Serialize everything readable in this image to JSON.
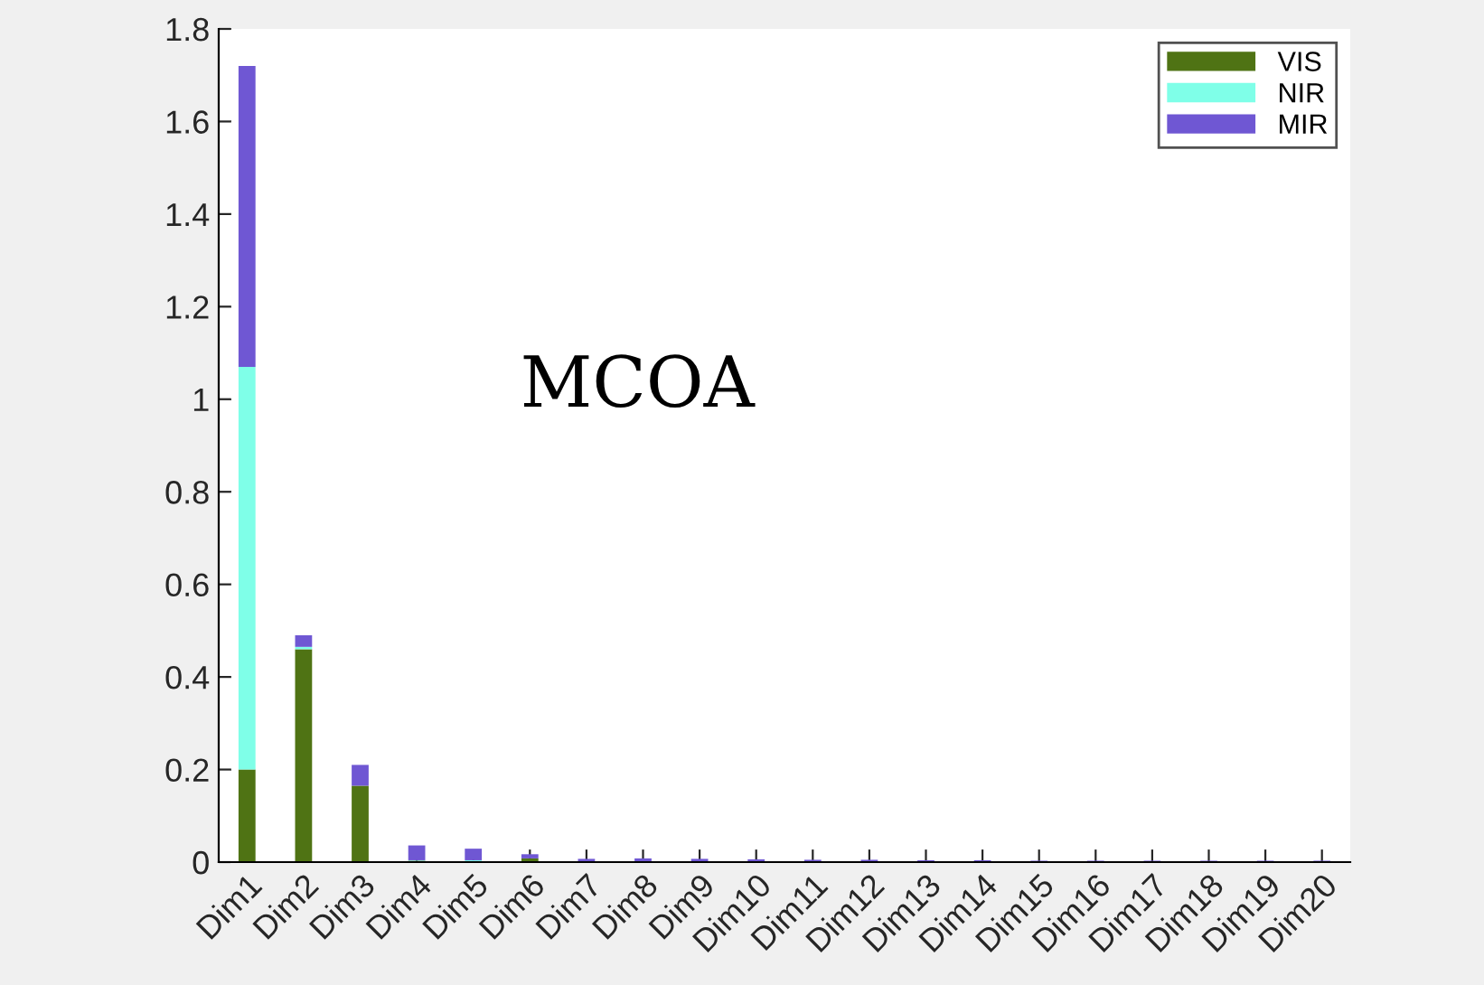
{
  "chart_data": {
    "type": "bar",
    "stacked": true,
    "categories": [
      "Dim1",
      "Dim2",
      "Dim3",
      "Dim4",
      "Dim5",
      "Dim6",
      "Dim7",
      "Dim8",
      "Dim9",
      "Dim10",
      "Dim11",
      "Dim12",
      "Dim13",
      "Dim14",
      "Dim15",
      "Dim16",
      "Dim17",
      "Dim18",
      "Dim19",
      "Dim20"
    ],
    "series": [
      {
        "name": "VIS",
        "color": "#4f7314",
        "values": [
          0.2,
          0.46,
          0.165,
          0.003,
          0.002,
          0.008,
          null,
          0.001,
          0.001,
          0.001,
          0.001,
          0.001,
          0.001,
          0.001,
          0.001,
          0.001,
          0.001,
          0.001,
          0.001,
          0.001
        ]
      },
      {
        "name": "NIR",
        "color": "#7fffe8",
        "values": [
          0.87,
          0.005,
          0.0,
          0.001,
          0.002,
          null,
          null,
          0.001,
          0.001,
          0.001,
          0.001,
          0.001,
          0.001,
          0.001,
          0.0,
          0.0,
          0.0,
          0.0,
          0.0,
          0.0
        ]
      },
      {
        "name": "MIR",
        "color": "#6f57d3",
        "values": [
          0.65,
          0.025,
          0.045,
          0.032,
          0.025,
          0.009,
          0.007,
          0.006,
          0.005,
          0.004,
          0.003,
          0.003,
          0.002,
          0.002,
          0.002,
          0.002,
          0.002,
          0.002,
          0.002,
          0.002
        ]
      }
    ],
    "ylim": [
      0,
      1.8
    ],
    "yticks": [
      0,
      0.2,
      0.4,
      0.6,
      0.8,
      1,
      1.2,
      1.4,
      1.6,
      1.8
    ],
    "annotations": [
      "MCOA"
    ],
    "legend": "top right",
    "grid": false
  }
}
